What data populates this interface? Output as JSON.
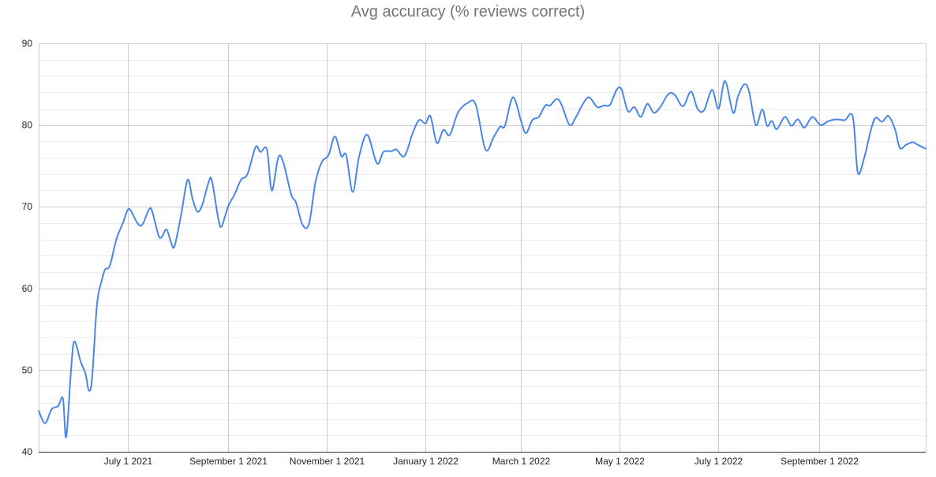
{
  "chart_data": {
    "type": "line",
    "title": "Avg accuracy (% reviews correct)",
    "xlabel": "",
    "ylabel": "",
    "ylim": [
      40,
      90
    ],
    "xlim": [
      "2021-05-07",
      "2022-11-06"
    ],
    "y_ticks": [
      40,
      50,
      60,
      70,
      80,
      90
    ],
    "x_ticks": [
      {
        "date": "2021-07-01",
        "label": "July 1 2021"
      },
      {
        "date": "2021-09-01",
        "label": "September 1 2021"
      },
      {
        "date": "2021-11-01",
        "label": "November 1 2021"
      },
      {
        "date": "2022-01-01",
        "label": "January 1 2022"
      },
      {
        "date": "2022-03-01",
        "label": "March 1 2022"
      },
      {
        "date": "2022-05-01",
        "label": "May 1 2022"
      },
      {
        "date": "2022-07-01",
        "label": "July 1 2022"
      },
      {
        "date": "2022-09-01",
        "label": "September 1 2022"
      }
    ],
    "grid": true,
    "line_color": "#4a86e8",
    "series": [
      {
        "points": [
          [
            "2021-05-07",
            45.0
          ],
          [
            "2021-05-11",
            43.5
          ],
          [
            "2021-05-15",
            45.2
          ],
          [
            "2021-05-19",
            45.6
          ],
          [
            "2021-05-22",
            46.5
          ],
          [
            "2021-05-24",
            41.8
          ],
          [
            "2021-05-27",
            50.0
          ],
          [
            "2021-05-29",
            53.5
          ],
          [
            "2021-06-02",
            51.0
          ],
          [
            "2021-06-05",
            49.5
          ],
          [
            "2021-06-07",
            47.5
          ],
          [
            "2021-06-09",
            49.0
          ],
          [
            "2021-06-12",
            58.0
          ],
          [
            "2021-06-15",
            61.0
          ],
          [
            "2021-06-17",
            62.3
          ],
          [
            "2021-06-20",
            62.8
          ],
          [
            "2021-06-24",
            66.0
          ],
          [
            "2021-06-28",
            68.0
          ],
          [
            "2021-07-01",
            69.6
          ],
          [
            "2021-07-03",
            69.5
          ],
          [
            "2021-07-07",
            68.0
          ],
          [
            "2021-07-10",
            67.8
          ],
          [
            "2021-07-14",
            69.6
          ],
          [
            "2021-07-16",
            69.5
          ],
          [
            "2021-07-20",
            66.5
          ],
          [
            "2021-07-22",
            66.3
          ],
          [
            "2021-07-25",
            67.2
          ],
          [
            "2021-07-28",
            65.5
          ],
          [
            "2021-07-30",
            65.2
          ],
          [
            "2021-08-03",
            69.0
          ],
          [
            "2021-08-07",
            73.3
          ],
          [
            "2021-08-10",
            71.0
          ],
          [
            "2021-08-13",
            69.4
          ],
          [
            "2021-08-16",
            70.2
          ],
          [
            "2021-08-20",
            73.0
          ],
          [
            "2021-08-22",
            73.2
          ],
          [
            "2021-08-26",
            68.5
          ],
          [
            "2021-08-28",
            67.6
          ],
          [
            "2021-09-01",
            70.0
          ],
          [
            "2021-09-05",
            71.5
          ],
          [
            "2021-09-09",
            73.3
          ],
          [
            "2021-09-13",
            74.0
          ],
          [
            "2021-09-18",
            77.3
          ],
          [
            "2021-09-21",
            76.7
          ],
          [
            "2021-09-25",
            77.0
          ],
          [
            "2021-09-28",
            72.0
          ],
          [
            "2021-10-02",
            76.0
          ],
          [
            "2021-10-05",
            75.5
          ],
          [
            "2021-10-10",
            71.5
          ],
          [
            "2021-10-13",
            70.5
          ],
          [
            "2021-10-17",
            67.8
          ],
          [
            "2021-10-21",
            67.9
          ],
          [
            "2021-10-25",
            73.0
          ],
          [
            "2021-10-29",
            75.5
          ],
          [
            "2021-11-02",
            76.3
          ],
          [
            "2021-11-06",
            78.6
          ],
          [
            "2021-11-10",
            76.2
          ],
          [
            "2021-11-13",
            76.3
          ],
          [
            "2021-11-17",
            71.8
          ],
          [
            "2021-11-21",
            76.2
          ],
          [
            "2021-11-26",
            78.8
          ],
          [
            "2021-12-02",
            75.3
          ],
          [
            "2021-12-06",
            76.7
          ],
          [
            "2021-12-11",
            76.8
          ],
          [
            "2021-12-14",
            77.0
          ],
          [
            "2021-12-19",
            76.2
          ],
          [
            "2021-12-24",
            79.0
          ],
          [
            "2021-12-28",
            80.6
          ],
          [
            "2022-01-01",
            80.2
          ],
          [
            "2022-01-04",
            81.1
          ],
          [
            "2022-01-08",
            77.8
          ],
          [
            "2022-01-12",
            79.4
          ],
          [
            "2022-01-16",
            78.8
          ],
          [
            "2022-01-21",
            81.5
          ],
          [
            "2022-01-27",
            82.7
          ],
          [
            "2022-02-01",
            82.5
          ],
          [
            "2022-02-07",
            77.0
          ],
          [
            "2022-02-12",
            78.5
          ],
          [
            "2022-02-16",
            79.8
          ],
          [
            "2022-02-19",
            79.9
          ],
          [
            "2022-02-24",
            83.4
          ],
          [
            "2022-03-01",
            80.5
          ],
          [
            "2022-03-04",
            79.0
          ],
          [
            "2022-03-08",
            80.6
          ],
          [
            "2022-03-12",
            81.0
          ],
          [
            "2022-03-16",
            82.4
          ],
          [
            "2022-03-19",
            82.4
          ],
          [
            "2022-03-23",
            83.2
          ],
          [
            "2022-03-26",
            82.5
          ],
          [
            "2022-03-31",
            80.0
          ],
          [
            "2022-04-04",
            81.0
          ],
          [
            "2022-04-08",
            82.5
          ],
          [
            "2022-04-12",
            83.4
          ],
          [
            "2022-04-17",
            82.2
          ],
          [
            "2022-04-21",
            82.4
          ],
          [
            "2022-04-25",
            82.5
          ],
          [
            "2022-04-29",
            84.3
          ],
          [
            "2022-05-02",
            84.4
          ],
          [
            "2022-05-06",
            81.7
          ],
          [
            "2022-05-10",
            82.2
          ],
          [
            "2022-05-14",
            81.0
          ],
          [
            "2022-05-18",
            82.6
          ],
          [
            "2022-05-22",
            81.5
          ],
          [
            "2022-05-26",
            82.2
          ],
          [
            "2022-05-31",
            83.8
          ],
          [
            "2022-06-04",
            83.7
          ],
          [
            "2022-06-09",
            82.3
          ],
          [
            "2022-06-14",
            84.1
          ],
          [
            "2022-06-18",
            82.0
          ],
          [
            "2022-06-22",
            81.8
          ],
          [
            "2022-06-27",
            84.3
          ],
          [
            "2022-07-01",
            82.0
          ],
          [
            "2022-07-05",
            85.4
          ],
          [
            "2022-07-10",
            81.5
          ],
          [
            "2022-07-13",
            83.5
          ],
          [
            "2022-07-17",
            85.0
          ],
          [
            "2022-07-20",
            84.0
          ],
          [
            "2022-07-24",
            80.0
          ],
          [
            "2022-07-28",
            81.9
          ],
          [
            "2022-07-31",
            79.9
          ],
          [
            "2022-08-03",
            80.5
          ],
          [
            "2022-08-06",
            79.5
          ],
          [
            "2022-08-11",
            81.0
          ],
          [
            "2022-08-15",
            79.9
          ],
          [
            "2022-08-19",
            80.7
          ],
          [
            "2022-08-23",
            79.7
          ],
          [
            "2022-08-28",
            81.0
          ],
          [
            "2022-09-02",
            80.0
          ],
          [
            "2022-09-07",
            80.5
          ],
          [
            "2022-09-12",
            80.7
          ],
          [
            "2022-09-17",
            80.6
          ],
          [
            "2022-09-22",
            81.0
          ],
          [
            "2022-09-25",
            74.2
          ],
          [
            "2022-09-29",
            76.0
          ],
          [
            "2022-10-03",
            79.3
          ],
          [
            "2022-10-06",
            80.9
          ],
          [
            "2022-10-10",
            80.4
          ],
          [
            "2022-10-14",
            81.1
          ],
          [
            "2022-10-18",
            79.5
          ],
          [
            "2022-10-21",
            77.2
          ],
          [
            "2022-10-25",
            77.6
          ],
          [
            "2022-10-29",
            77.9
          ],
          [
            "2022-11-01",
            77.6
          ],
          [
            "2022-11-06",
            77.1
          ]
        ]
      }
    ]
  }
}
